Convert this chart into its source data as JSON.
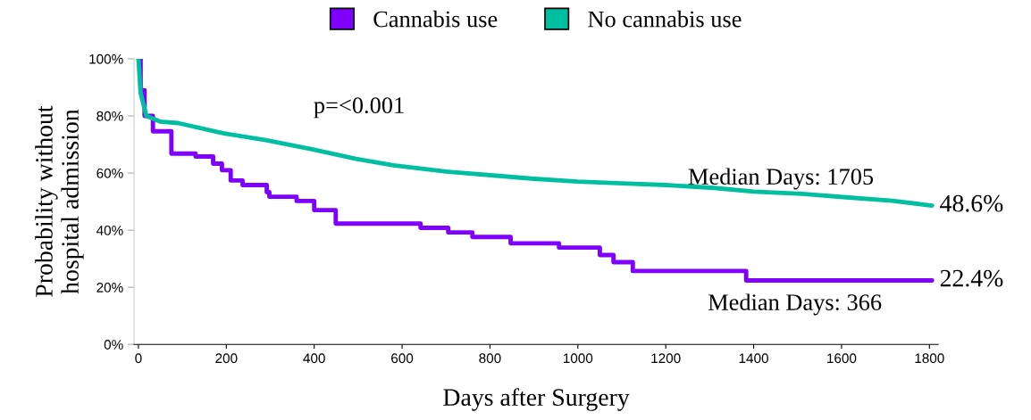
{
  "chart_data": {
    "type": "step",
    "xlabel": "Days after Surgery",
    "ylabel": "Probability without\nhospital admission",
    "xlim": [
      -10,
      1820
    ],
    "xticks": [
      0,
      200,
      400,
      600,
      800,
      1000,
      1200,
      1400,
      1600,
      1800
    ],
    "ylim": [
      0,
      100
    ],
    "yticks": [
      {
        "value": 0,
        "label": "0%"
      },
      {
        "value": 20,
        "label": "20%"
      },
      {
        "value": 40,
        "label": "40%"
      },
      {
        "value": 60,
        "label": "60%"
      },
      {
        "value": 80,
        "label": "80%"
      },
      {
        "value": 100,
        "label": "100%"
      }
    ],
    "grid": false,
    "legend": "top",
    "marker": "none",
    "line_style": "solid",
    "series": [
      {
        "name": "Cannabis use",
        "color": "#7f00ff",
        "x": [
          0,
          5,
          14,
          33,
          75,
          130,
          170,
          190,
          210,
          237,
          292,
          298,
          360,
          400,
          449,
          642,
          705,
          760,
          847,
          957,
          1050,
          1081,
          1125,
          1383,
          1806
        ],
        "values": [
          100,
          89,
          80,
          74.6,
          66.8,
          65.8,
          63.3,
          61,
          57.4,
          55.8,
          53.3,
          51.7,
          50.2,
          47,
          42.3,
          40.8,
          39.2,
          37.6,
          35.4,
          33.9,
          31.3,
          28.8,
          25.7,
          22.4,
          22.4
        ]
      },
      {
        "name": "No cannabis use",
        "color": "#00bfa0",
        "type": "line",
        "x": [
          0,
          5,
          18,
          50,
          90,
          190,
          290,
          395,
          495,
          580,
          700,
          820,
          900,
          1000,
          1100,
          1200,
          1310,
          1400,
          1510,
          1610,
          1715,
          1806
        ],
        "values": [
          100,
          88,
          80,
          78,
          77.5,
          74,
          71.5,
          68.3,
          65,
          62.7,
          60.5,
          59,
          58,
          57,
          56.4,
          55.8,
          54.8,
          53.5,
          52.7,
          51.5,
          50.3,
          48.6
        ]
      }
    ],
    "annotations": [
      "p=<0.001",
      "Median Days: 1705",
      "Median Days: 366",
      {
        "text": "48.6%",
        "x": 1806,
        "y": 48.6
      },
      {
        "text": "22.4%",
        "x": 1806,
        "y": 22.4
      }
    ]
  }
}
